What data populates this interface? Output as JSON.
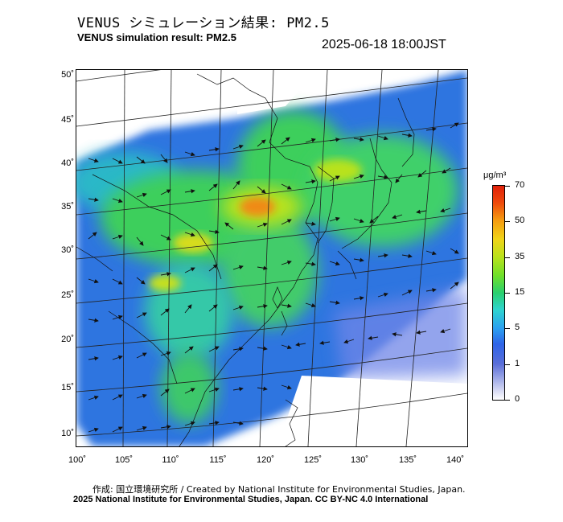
{
  "header": {
    "title_jp": "VENUS シミュレーション結果: PM2.5",
    "title_en": "VENUS simulation result: PM2.5",
    "timestamp": "2025-06-18 18:00JST"
  },
  "map": {
    "lat_labels": [
      "50˚",
      "45˚",
      "40˚",
      "35˚",
      "30˚",
      "25˚",
      "20˚",
      "15˚",
      "10˚"
    ],
    "lon_labels": [
      "100˚",
      "105˚",
      "110˚",
      "115˚",
      "120˚",
      "125˚",
      "130˚",
      "135˚",
      "140˚"
    ]
  },
  "colorbar": {
    "unit": "μg/m³",
    "ticks": [
      {
        "label": "70",
        "level": 1.0
      },
      {
        "label": "50",
        "level": 0.833
      },
      {
        "label": "35",
        "level": 0.667
      },
      {
        "label": "15",
        "level": 0.5
      },
      {
        "label": "5",
        "level": 0.333
      },
      {
        "label": "1",
        "level": 0.167
      },
      {
        "label": "0",
        "level": 0.0
      }
    ]
  },
  "footer": {
    "credit_jp": "作成: 国立環境研究所 / Created by National Institute for Environmental Studies, Japan.",
    "copyright": "2025 National Institute for Environmental Studies, Japan. CC BY-NC 4.0 International"
  }
}
